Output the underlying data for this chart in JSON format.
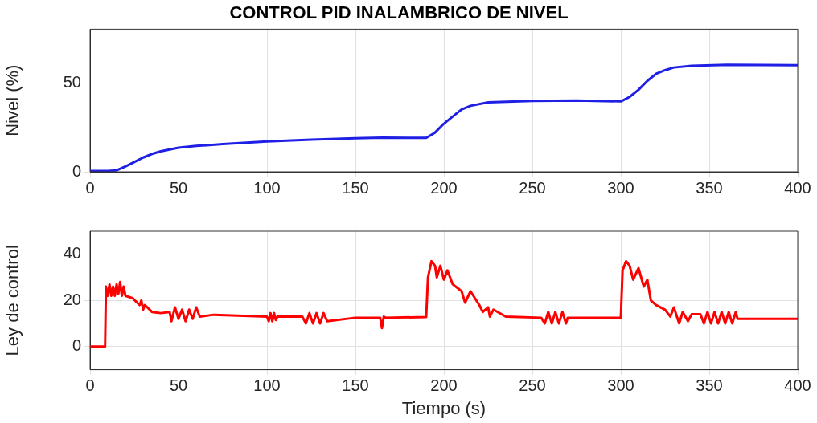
{
  "chart_data": [
    {
      "type": "line",
      "title": "CONTROL PID INALAMBRICO DE NIVEL",
      "ylabel": "Nivel (%)",
      "xlim": [
        0,
        400
      ],
      "xticks": [
        0,
        50,
        100,
        150,
        200,
        250,
        300,
        350,
        400
      ],
      "ylim": [
        0,
        80
      ],
      "yticks": [
        0,
        50
      ],
      "grid": true,
      "legend": false,
      "marker": "none",
      "line_style": "solid",
      "series": [
        {
          "color": "#1f1fe6",
          "x": [
            0,
            10,
            15,
            20,
            25,
            30,
            35,
            40,
            50,
            60,
            75,
            100,
            125,
            150,
            165,
            180,
            190,
            195,
            200,
            205,
            210,
            215,
            225,
            250,
            275,
            300,
            305,
            310,
            315,
            320,
            325,
            330,
            340,
            360,
            400
          ],
          "values": [
            0.5,
            0.5,
            0.8,
            3,
            5.5,
            8,
            10,
            11.5,
            13.5,
            14.5,
            15.5,
            17,
            18,
            18.8,
            19.2,
            19,
            19,
            22,
            27,
            31,
            35,
            37,
            39,
            39.8,
            40,
            39.5,
            42,
            46,
            51,
            55,
            57,
            58.5,
            59.5,
            60,
            59.8
          ]
        }
      ]
    },
    {
      "type": "line",
      "xlabel": "Tiempo (s)",
      "ylabel": "Ley de control",
      "xlim": [
        0,
        400
      ],
      "xticks": [
        0,
        50,
        100,
        150,
        200,
        250,
        300,
        350,
        400
      ],
      "ylim": [
        -10,
        50
      ],
      "yticks": [
        0,
        20,
        40
      ],
      "grid": true,
      "legend": false,
      "marker": "none",
      "line_style": "solid",
      "series": [
        {
          "color": "#ff0000",
          "x": [
            0,
            8.5,
            9,
            10,
            11,
            12,
            13,
            14,
            15,
            16,
            17,
            18,
            19,
            20,
            24,
            28,
            29,
            30,
            31,
            35,
            40,
            45,
            46,
            48,
            50,
            52,
            54,
            56,
            58,
            60,
            62,
            70,
            100,
            101,
            102,
            103,
            104,
            105,
            106,
            120,
            122,
            124,
            126,
            128,
            130,
            132,
            134,
            150,
            164,
            165,
            166,
            167,
            190,
            191,
            193,
            195,
            196,
            198,
            200,
            202,
            205,
            210,
            212,
            215,
            220,
            222,
            225,
            226,
            228,
            235,
            255,
            257,
            259,
            261,
            263,
            265,
            267,
            269,
            270,
            300,
            301,
            303,
            305,
            307,
            310,
            313,
            315,
            317,
            320,
            325,
            328,
            330,
            333,
            335,
            338,
            340,
            345,
            347,
            349,
            351,
            353,
            355,
            357,
            359,
            361,
            363,
            365,
            366,
            400
          ],
          "values": [
            0,
            0,
            26,
            22,
            27,
            22,
            26,
            22,
            27,
            23,
            28,
            22,
            26,
            22,
            21,
            18,
            20,
            16,
            18,
            15,
            14.5,
            15,
            11,
            17,
            12,
            16,
            11,
            16,
            12,
            17,
            13,
            13.8,
            13,
            11,
            14.5,
            11,
            14.5,
            11.5,
            13,
            13,
            10,
            14.5,
            10,
            14.5,
            10,
            14.5,
            11,
            12.5,
            12.5,
            8,
            13,
            12.5,
            12.8,
            30,
            37,
            35,
            30,
            35,
            29,
            33,
            27,
            24,
            19,
            24,
            18,
            15,
            17,
            13,
            16,
            13,
            12.5,
            10,
            15,
            10,
            15,
            10,
            15,
            10,
            12.5,
            12.5,
            33,
            37,
            35,
            29,
            34,
            26,
            29,
            20,
            18,
            16,
            13,
            17,
            10,
            15,
            11,
            14,
            14,
            10,
            15,
            10,
            15,
            10,
            15,
            10,
            15,
            10,
            15,
            12,
            12
          ]
        }
      ]
    }
  ]
}
